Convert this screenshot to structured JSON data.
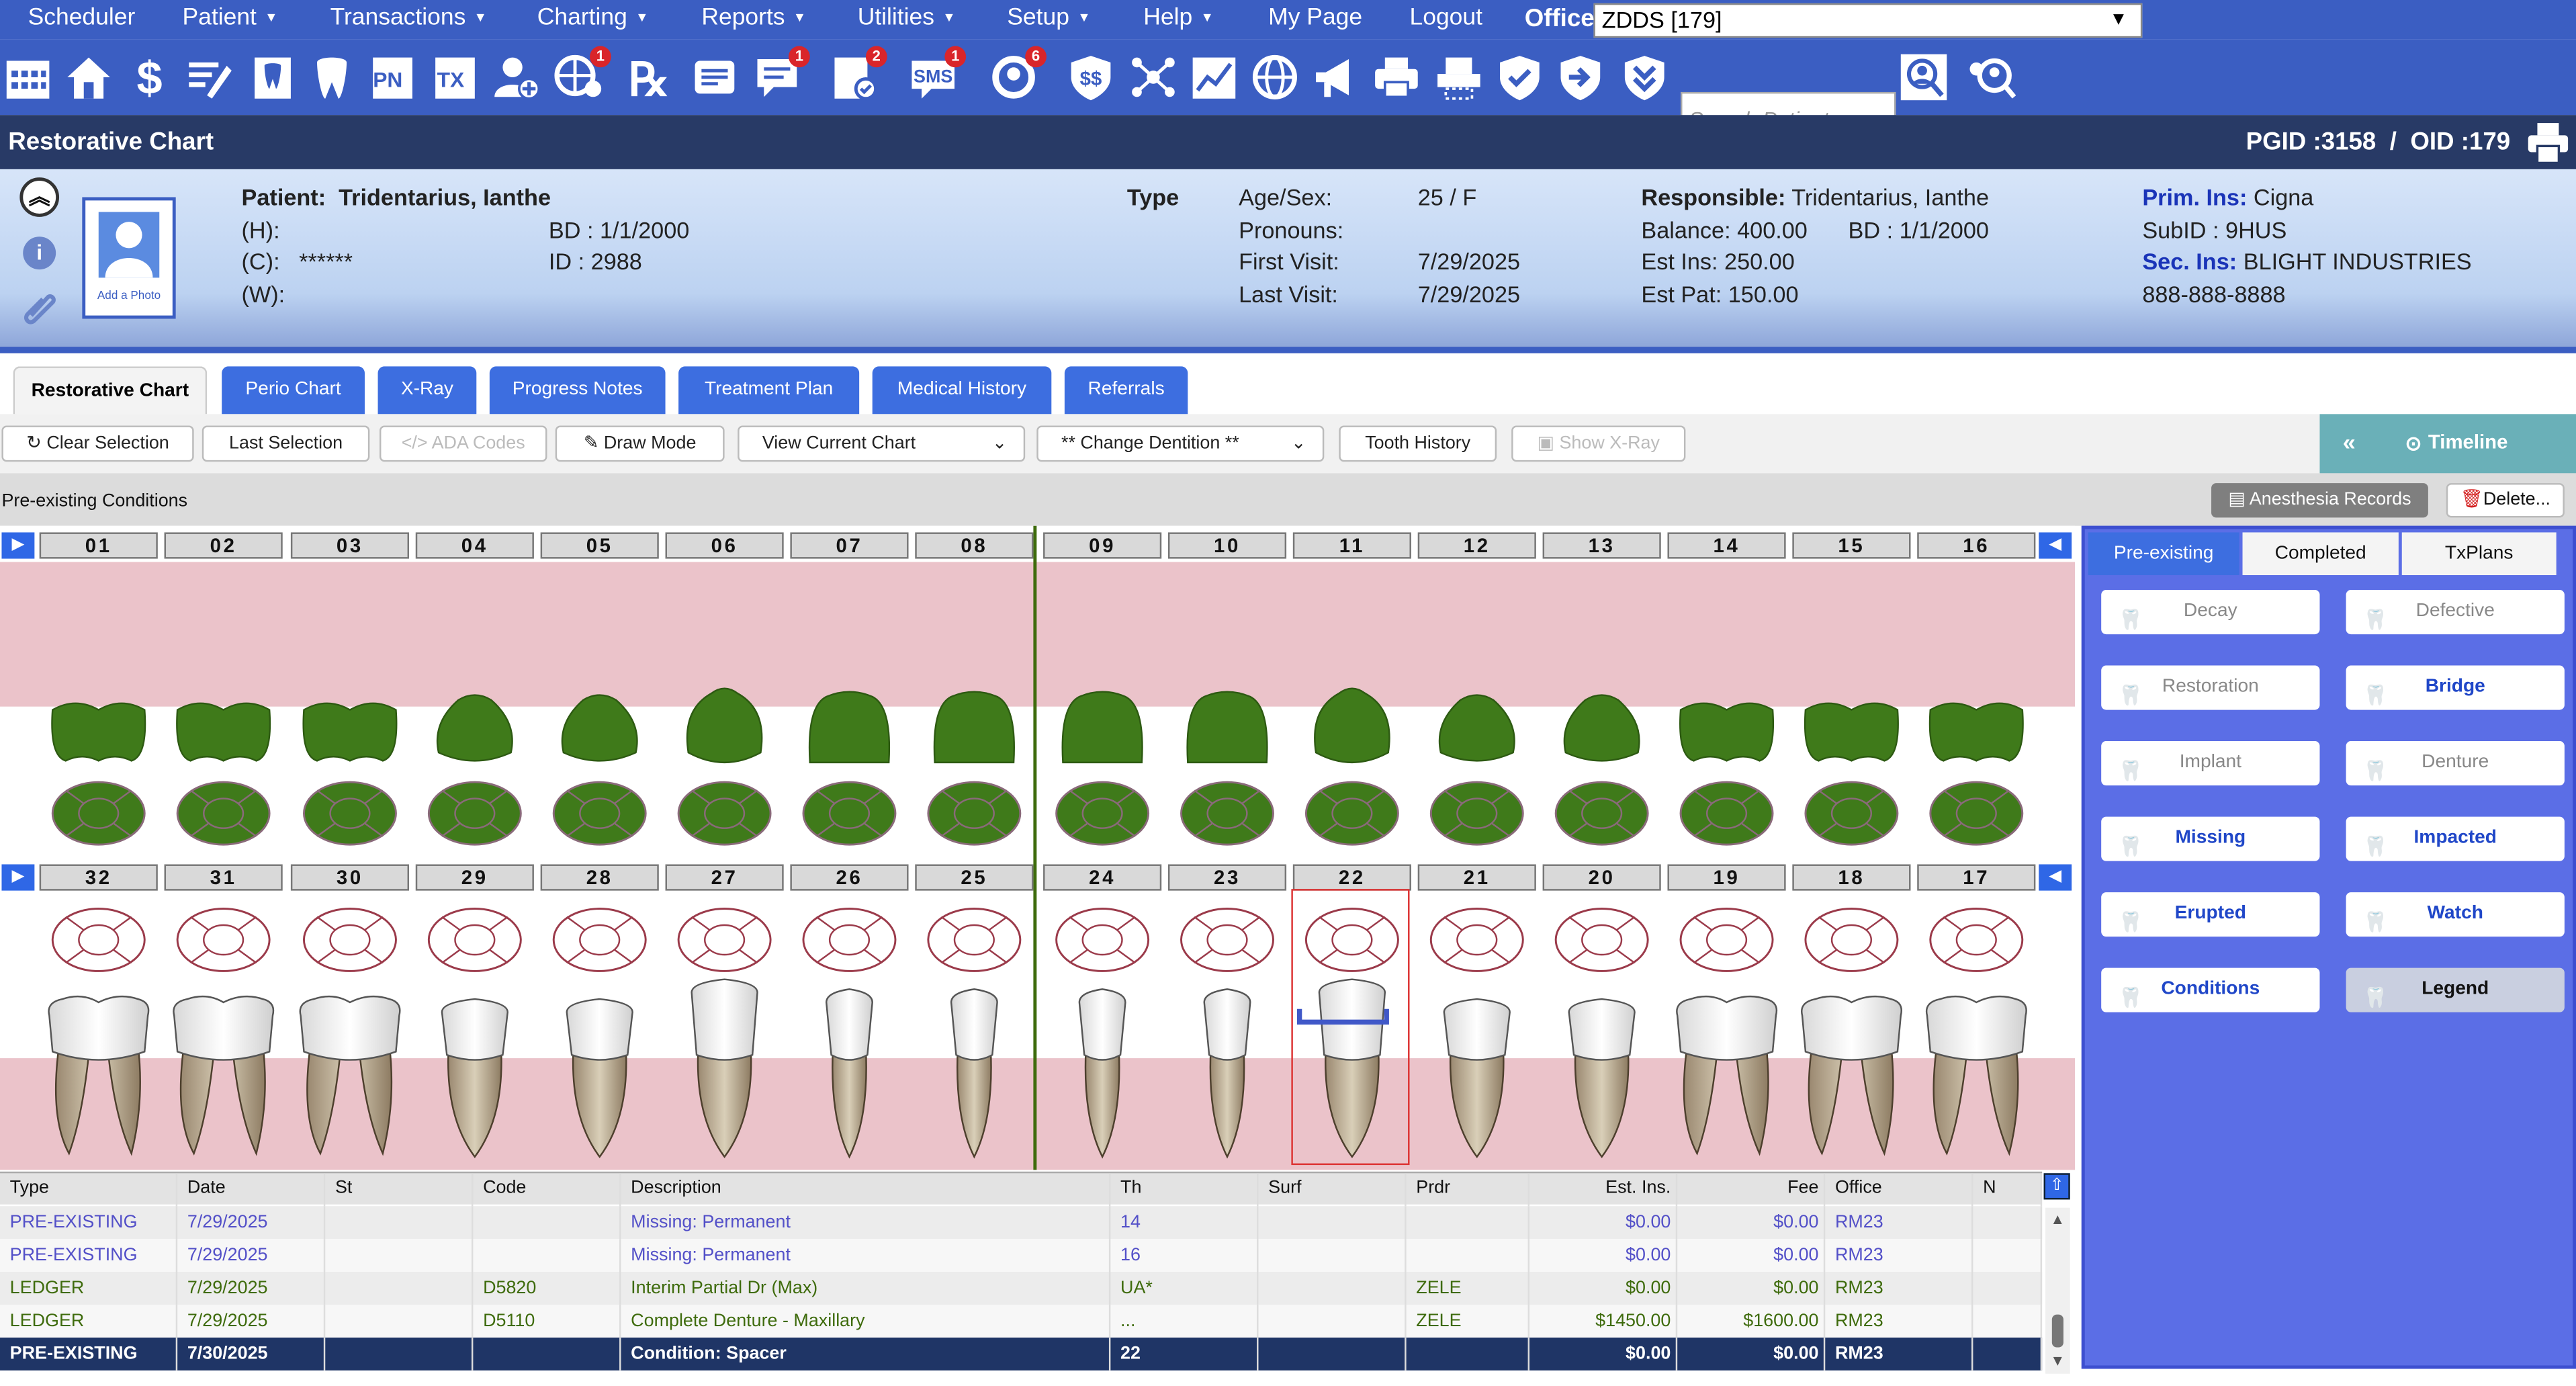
{
  "menu": {
    "items": [
      "Scheduler",
      "Patient",
      "Transactions",
      "Charting",
      "Reports",
      "Utilities",
      "Setup",
      "Help",
      "My Page",
      "Logout"
    ],
    "office_label": "Office",
    "office_value": "ZDDS [179]"
  },
  "toolbar": {
    "badges": {
      "reminder": "1",
      "messages": "1",
      "tasks": "2",
      "sms": "1",
      "recall": "6"
    },
    "pn": "PN",
    "tx": "TX",
    "search_placeholder": "Search Patient..."
  },
  "title": {
    "text": "Restorative Chart",
    "pgid": "PGID :3158",
    "oid": "OID :179"
  },
  "patient": {
    "label": "Patient:",
    "name": "Tridentarius, Ianthe",
    "h": "(H):",
    "c": "(C):",
    "c_value": "******",
    "w": "(W):",
    "bd": "BD : 1/1/2000",
    "id": "ID : 2988",
    "add_photo": "Add a Photo",
    "type_label": "Type",
    "age_sex_label": "Age/Sex:",
    "age_sex": "25 / F",
    "pronouns_label": "Pronouns:",
    "first_visit_label": "First Visit:",
    "first_visit": "7/29/2025",
    "last_visit_label": "Last Visit:",
    "last_visit": "7/29/2025",
    "responsible_label": "Responsible:",
    "responsible": "Tridentarius, Ianthe",
    "balance": "Balance: 400.00",
    "resp_bd": "BD : 1/1/2000",
    "est_ins": "Est Ins:  250.00",
    "est_pat": "Est Pat: 150.00",
    "prim_ins_label": "Prim. Ins:",
    "prim_ins": "Cigna",
    "subid": "SubID : 9HUS",
    "sec_ins_label": "Sec. Ins:",
    "sec_ins": "BLIGHT INDUSTRIES",
    "phone": "888-888-8888"
  },
  "tabs": [
    "Restorative Chart",
    "Perio Chart",
    "X-Ray",
    "Progress Notes",
    "Treatment Plan",
    "Medical History",
    "Referrals"
  ],
  "actions": {
    "clear": "Clear Selection",
    "last": "Last Selection",
    "ada": "ADA Codes",
    "draw": "Draw Mode",
    "view": "View Current Chart",
    "dentition": "** Change Dentition **",
    "history": "Tooth History",
    "xray": "Show X-Ray",
    "timeline": "Timeline"
  },
  "conditions": {
    "title": "Pre-existing Conditions",
    "anesthesia": "Anesthesia Records",
    "delete": "Delete..."
  },
  "teeth": {
    "upper": [
      "01",
      "02",
      "03",
      "04",
      "05",
      "06",
      "07",
      "08",
      "09",
      "10",
      "11",
      "12",
      "13",
      "14",
      "15",
      "16"
    ],
    "lower": [
      "32",
      "31",
      "30",
      "29",
      "28",
      "27",
      "26",
      "25",
      "24",
      "23",
      "22",
      "21",
      "20",
      "19",
      "18",
      "17"
    ]
  },
  "side": {
    "tabs": [
      "Pre-existing",
      "Completed",
      "TxPlans"
    ],
    "buttons": [
      "Decay",
      "Defective",
      "Restoration",
      "Bridge",
      "Implant",
      "Denture",
      "Missing",
      "Impacted",
      "Erupted",
      "Watch",
      "Conditions",
      "Legend"
    ]
  },
  "table": {
    "headers": [
      "Type",
      "Date",
      "St",
      "Code",
      "Description",
      "Th",
      "Surf",
      "Prdr",
      "Est. Ins.",
      "Fee",
      "Office",
      "N"
    ],
    "rows": [
      [
        "PRE-EXISTING",
        "7/29/2025",
        "",
        "",
        "Missing: Permanent",
        "14",
        "",
        "",
        "$0.00",
        "$0.00",
        "RM23",
        ""
      ],
      [
        "PRE-EXISTING",
        "7/29/2025",
        "",
        "",
        "Missing: Permanent",
        "16",
        "",
        "",
        "$0.00",
        "$0.00",
        "RM23",
        ""
      ],
      [
        "LEDGER",
        "7/29/2025",
        "",
        "D5820",
        "Interim Partial Dr (Max)",
        "UA*",
        "",
        "ZELE",
        "$0.00",
        "$0.00",
        "RM23",
        ""
      ],
      [
        "LEDGER",
        "7/29/2025",
        "",
        "D5110",
        "Complete Denture - Maxillary",
        "...",
        "",
        "ZELE",
        "$1450.00",
        "$1600.00",
        "RM23",
        ""
      ],
      [
        "PRE-EXISTING",
        "7/30/2025",
        "",
        "",
        "Condition: Spacer",
        "22",
        "",
        "",
        "$0.00",
        "$0.00",
        "RM23",
        ""
      ]
    ]
  },
  "colors": {
    "menu_bg": "#3b5ec2",
    "title_bg": "#283a66",
    "tooth_green": "#3f7a1a",
    "selected_row": "#1f3566"
  }
}
